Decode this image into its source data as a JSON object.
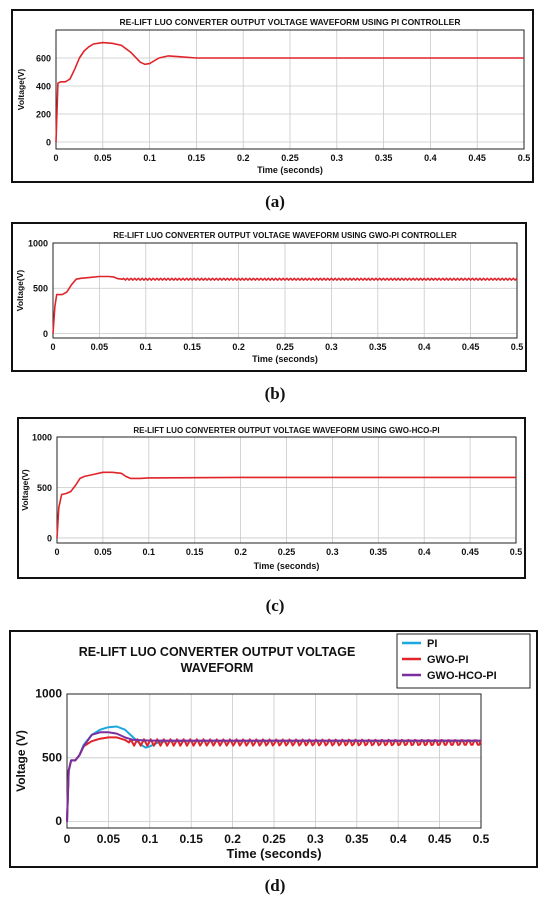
{
  "captions": [
    "(a)",
    "(b)",
    "(c)",
    "(d)"
  ],
  "chart_data": [
    {
      "type": "line",
      "title": "RE-LIFT LUO CONVERTER OUTPUT VOLTAGE WAVEFORM USING PI CONTROLLER",
      "xlabel": "Time (seconds)",
      "ylabel": "Voltage(V)",
      "xlim": [
        0,
        0.5
      ],
      "ylim": [
        -50,
        800
      ],
      "xticks": [
        "0",
        "0.05",
        "0.1",
        "0.15",
        "0.2",
        "0.25",
        "0.3",
        "0.35",
        "0.4",
        "0.45",
        "0.5"
      ],
      "yticks": [
        "0",
        "200",
        "400",
        "600"
      ],
      "grid": true,
      "series": [
        {
          "color": "#e0242a",
          "x": [
            0,
            0.002,
            0.005,
            0.01,
            0.015,
            0.02,
            0.025,
            0.03,
            0.035,
            0.04,
            0.05,
            0.06,
            0.07,
            0.08,
            0.09,
            0.095,
            0.1,
            0.11,
            0.12,
            0.13,
            0.15,
            0.2,
            0.3,
            0.4,
            0.5
          ],
          "y": [
            0,
            420,
            430,
            430,
            450,
            520,
            600,
            650,
            680,
            700,
            710,
            705,
            690,
            640,
            570,
            555,
            560,
            600,
            615,
            610,
            600,
            600,
            600,
            600,
            600
          ]
        }
      ]
    },
    {
      "type": "line",
      "title": "RE-LIFT LUO CONVERTER OUTPUT VOLTAGE WAVEFORM USING GWO-PI CONTROLLER",
      "xlabel": "Time (seconds)",
      "ylabel": "Voltage(V)",
      "xlim": [
        0,
        0.5
      ],
      "ylim": [
        -50,
        1000
      ],
      "xticks": [
        "0",
        "0.05",
        "0.1",
        "0.15",
        "0.2",
        "0.25",
        "0.3",
        "0.35",
        "0.4",
        "0.45",
        "0.5"
      ],
      "yticks": [
        "0",
        "500",
        "1000"
      ],
      "grid": true,
      "series": [
        {
          "color": "#e0242a",
          "x": [
            0,
            0.002,
            0.004,
            0.01,
            0.015,
            0.02,
            0.025,
            0.03,
            0.04,
            0.05,
            0.06,
            0.065,
            0.07,
            0.075,
            0.5
          ],
          "y": [
            0,
            300,
            430,
            430,
            460,
            540,
            600,
            610,
            620,
            630,
            630,
            625,
            605,
            600,
            600
          ],
          "ripple": {
            "from": 0.075,
            "amplitude": 10,
            "period": 0.004
          }
        }
      ]
    },
    {
      "type": "line",
      "title": "RE-LIFT LUO CONVERTER OUTPUT VOLTAGE WAVEFORM USING GWO-HCO-PI",
      "xlabel": "Time (seconds)",
      "ylabel": "Voltage(V)",
      "xlim": [
        0,
        0.5
      ],
      "ylim": [
        -50,
        1000
      ],
      "xticks": [
        "0",
        "0.05",
        "0.1",
        "0.15",
        "0.2",
        "0.25",
        "0.3",
        "0.35",
        "0.4",
        "0.45",
        "0.5"
      ],
      "yticks": [
        "0",
        "500",
        "1000"
      ],
      "grid": true,
      "series": [
        {
          "color": "#e0242a",
          "x": [
            0,
            0.002,
            0.005,
            0.01,
            0.015,
            0.02,
            0.025,
            0.03,
            0.04,
            0.05,
            0.06,
            0.07,
            0.075,
            0.08,
            0.09,
            0.1,
            0.2,
            0.3,
            0.4,
            0.5
          ],
          "y": [
            0,
            300,
            430,
            440,
            460,
            520,
            590,
            610,
            630,
            650,
            650,
            640,
            610,
            590,
            590,
            595,
            600,
            600,
            600,
            600
          ]
        }
      ]
    },
    {
      "type": "line",
      "title": "RE-LIFT LUO CONVERTER OUTPUT VOLTAGE WAVEFORM",
      "xlabel": "Time (seconds)",
      "ylabel": "Voltage (V)",
      "xlim": [
        0,
        0.5
      ],
      "ylim": [
        -50,
        1000
      ],
      "xticks": [
        "0",
        "0.05",
        "0.1",
        "0.15",
        "0.2",
        "0.25",
        "0.3",
        "0.35",
        "0.4",
        "0.45",
        "0.5"
      ],
      "yticks": [
        "0",
        "500",
        "1000"
      ],
      "grid": true,
      "legend": "top-right",
      "series": [
        {
          "name": "PI",
          "color": "#1ba7df",
          "x": [
            0,
            0.002,
            0.005,
            0.01,
            0.015,
            0.02,
            0.03,
            0.04,
            0.05,
            0.06,
            0.07,
            0.08,
            0.09,
            0.095,
            0.1,
            0.11,
            0.12,
            0.15,
            0.3,
            0.5
          ],
          "y": [
            0,
            400,
            480,
            480,
            520,
            600,
            680,
            720,
            740,
            745,
            720,
            660,
            600,
            580,
            590,
            620,
            630,
            630,
            630,
            630
          ]
        },
        {
          "name": "GWO-PI",
          "color": "#e0242a",
          "x": [
            0,
            0.002,
            0.005,
            0.01,
            0.015,
            0.02,
            0.03,
            0.04,
            0.05,
            0.06,
            0.07,
            0.075,
            0.5
          ],
          "y": [
            0,
            400,
            480,
            480,
            520,
            590,
            630,
            650,
            660,
            660,
            640,
            620,
            620
          ],
          "ripple": {
            "from": 0.075,
            "amplitude": 25,
            "period": 0.008
          }
        },
        {
          "name": "GWO-HCO-PI",
          "color": "#7b2f9e",
          "x": [
            0,
            0.002,
            0.005,
            0.01,
            0.015,
            0.02,
            0.03,
            0.04,
            0.05,
            0.06,
            0.07,
            0.08,
            0.1,
            0.5
          ],
          "y": [
            0,
            400,
            480,
            480,
            520,
            590,
            680,
            700,
            700,
            690,
            660,
            640,
            635,
            635
          ]
        }
      ]
    }
  ]
}
